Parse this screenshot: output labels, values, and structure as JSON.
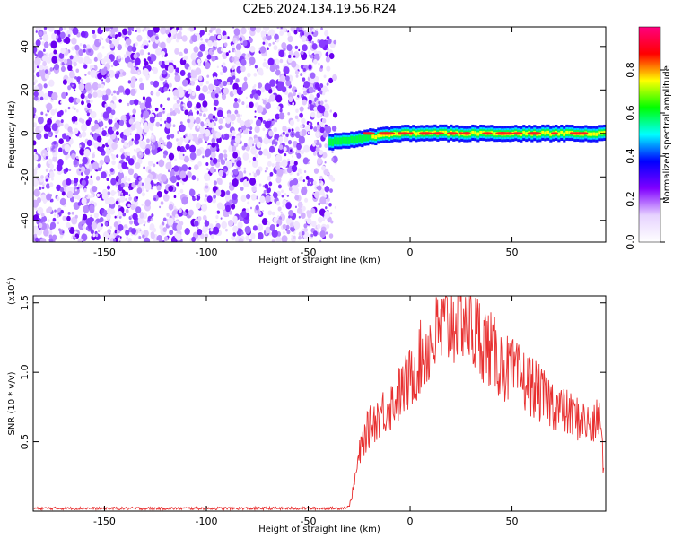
{
  "title": "C2E6.2024.134.19.56.R24",
  "chart_data": [
    {
      "type": "heatmap",
      "xlabel": "Height of straight line (km)",
      "ylabel": "Frequency (Hz)",
      "xlim": [
        -185,
        96
      ],
      "ylim": [
        -50,
        49
      ],
      "xticks": [
        -150,
        -100,
        -50,
        0,
        50
      ],
      "yticks": [
        -40,
        -20,
        0,
        20,
        40
      ],
      "colorbar": {
        "label": "Normalized spectral amplitude",
        "range": [
          0,
          1
        ],
        "ticks": [
          "0.0",
          "0.2",
          "0.4",
          "0.6",
          "0.8"
        ],
        "colors": [
          "#ffffff",
          "#e6d2ff",
          "#8000ff",
          "#0000ff",
          "#00ffff",
          "#00ff00",
          "#ffff00",
          "#ff0000",
          "#ff0080"
        ]
      },
      "regions": [
        {
          "x_range": [
            -185,
            -40
          ],
          "description_values": {
            "freq_range": [
              -50,
              49
            ],
            "amplitude_range": [
              0.0,
              0.2
            ]
          }
        },
        {
          "x_range": [
            -40,
            96
          ],
          "description_values": {
            "freq_center": 0,
            "amplitude_peak": 0.85
          }
        }
      ],
      "grid": false
    },
    {
      "type": "line",
      "xlabel": "Height of straight line (km)",
      "ylabel": "SNR (10 * v/v)",
      "y_scale_note": "(x10",
      "y_scale_exp": "4",
      "y_scale_close": ")",
      "xlim": [
        -185,
        96
      ],
      "ylim": [
        0,
        1.55
      ],
      "xticks": [
        -150,
        -100,
        -50,
        0,
        50
      ],
      "yticks": [
        "0.5",
        "1.0",
        "1.5"
      ],
      "series": [
        {
          "color": "#e83030",
          "x": [
            -185,
            -150,
            -100,
            -50,
            -35,
            -30,
            -28,
            -25,
            -22,
            -20,
            -15,
            -10,
            -5,
            0,
            5,
            10,
            15,
            20,
            25,
            30,
            35,
            40,
            45,
            50,
            55,
            60,
            65,
            70,
            75,
            80,
            85,
            90,
            93,
            95
          ],
          "y": [
            0.02,
            0.02,
            0.02,
            0.02,
            0.02,
            0.03,
            0.15,
            0.4,
            0.55,
            0.6,
            0.7,
            0.75,
            0.85,
            0.95,
            1.1,
            1.2,
            1.3,
            1.35,
            1.45,
            1.3,
            1.25,
            1.15,
            1.05,
            1.0,
            0.95,
            0.9,
            0.82,
            0.78,
            0.72,
            0.68,
            0.65,
            0.6,
            0.7,
            0.3
          ]
        }
      ],
      "grid": false
    }
  ]
}
